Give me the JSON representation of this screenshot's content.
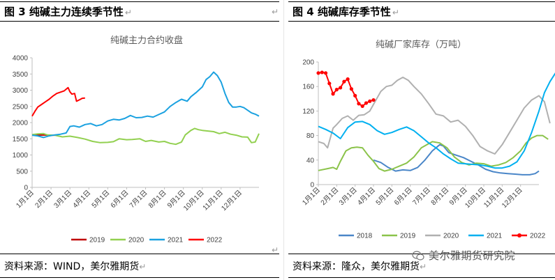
{
  "left": {
    "fig_label": "图 3  纯碱主力连续季节性",
    "return_mark": "↵",
    "source": "资料来源：WIND，美尔雅期货",
    "chart_data": {
      "type": "line",
      "title": "纯碱主力合约收盘",
      "xlabel": "",
      "ylabel": "",
      "ylim": [
        0,
        4000
      ],
      "y_ticks": [
        0,
        500,
        1000,
        1500,
        2000,
        2500,
        3000,
        3500,
        4000
      ],
      "x_ticks": [
        "1月1日",
        "2月1日",
        "3月1日",
        "4月1日",
        "5月1日",
        "6月1日",
        "7月1日",
        "8月1日",
        "9月1日",
        "10月1日",
        "11月1日",
        "12月1日"
      ],
      "xlim": [
        0,
        12
      ],
      "legend_position": "bottom",
      "grid": false,
      "series": [
        {
          "name": "2019",
          "color": "#c00000",
          "data": [
            [
              0.0,
              1620
            ],
            [
              0.2,
              1620
            ],
            [
              0.5,
              1615
            ],
            [
              0.8,
              1615
            ],
            [
              1.0,
              1610
            ],
            [
              1.2,
              1610
            ]
          ]
        },
        {
          "name": "2020",
          "color": "#92d050",
          "data": [
            [
              0.0,
              1630
            ],
            [
              0.3,
              1650
            ],
            [
              0.6,
              1660
            ],
            [
              0.8,
              1620
            ],
            [
              1.2,
              1610
            ],
            [
              1.6,
              1560
            ],
            [
              2.0,
              1580
            ],
            [
              2.4,
              1540
            ],
            [
              2.8,
              1490
            ],
            [
              3.2,
              1420
            ],
            [
              3.6,
              1380
            ],
            [
              4.0,
              1390
            ],
            [
              4.3,
              1410
            ],
            [
              4.6,
              1500
            ],
            [
              5.0,
              1470
            ],
            [
              5.3,
              1480
            ],
            [
              5.7,
              1500
            ],
            [
              6.0,
              1420
            ],
            [
              6.3,
              1450
            ],
            [
              6.7,
              1400
            ],
            [
              7.0,
              1420
            ],
            [
              7.3,
              1360
            ],
            [
              7.6,
              1330
            ],
            [
              7.9,
              1400
            ],
            [
              8.1,
              1620
            ],
            [
              8.4,
              1760
            ],
            [
              8.6,
              1820
            ],
            [
              8.8,
              1780
            ],
            [
              9.0,
              1760
            ],
            [
              9.3,
              1740
            ],
            [
              9.6,
              1720
            ],
            [
              9.9,
              1660
            ],
            [
              10.2,
              1700
            ],
            [
              10.5,
              1640
            ],
            [
              10.8,
              1610
            ],
            [
              11.1,
              1560
            ],
            [
              11.4,
              1550
            ],
            [
              11.6,
              1380
            ],
            [
              11.8,
              1400
            ],
            [
              12.0,
              1660
            ]
          ]
        },
        {
          "name": "2021",
          "color": "#1aa1e0",
          "data": [
            [
              0.0,
              1610
            ],
            [
              0.3,
              1590
            ],
            [
              0.6,
              1540
            ],
            [
              0.9,
              1590
            ],
            [
              1.2,
              1620
            ],
            [
              1.5,
              1640
            ],
            [
              1.8,
              1680
            ],
            [
              2.0,
              1880
            ],
            [
              2.2,
              1900
            ],
            [
              2.5,
              1860
            ],
            [
              2.8,
              1940
            ],
            [
              3.1,
              1970
            ],
            [
              3.4,
              1900
            ],
            [
              3.7,
              1940
            ],
            [
              4.0,
              2050
            ],
            [
              4.3,
              2100
            ],
            [
              4.6,
              2080
            ],
            [
              4.9,
              2130
            ],
            [
              5.2,
              2220
            ],
            [
              5.5,
              2150
            ],
            [
              5.8,
              2160
            ],
            [
              6.1,
              2200
            ],
            [
              6.4,
              2170
            ],
            [
              6.7,
              2250
            ],
            [
              7.0,
              2330
            ],
            [
              7.3,
              2500
            ],
            [
              7.6,
              2620
            ],
            [
              7.9,
              2720
            ],
            [
              8.2,
              2660
            ],
            [
              8.4,
              2800
            ],
            [
              8.7,
              2940
            ],
            [
              9.0,
              3100
            ],
            [
              9.2,
              3330
            ],
            [
              9.4,
              3420
            ],
            [
              9.6,
              3560
            ],
            [
              9.8,
              3450
            ],
            [
              10.0,
              3250
            ],
            [
              10.2,
              2900
            ],
            [
              10.4,
              2620
            ],
            [
              10.6,
              2480
            ],
            [
              10.8,
              2480
            ],
            [
              11.0,
              2500
            ],
            [
              11.2,
              2460
            ],
            [
              11.4,
              2380
            ],
            [
              11.6,
              2300
            ],
            [
              11.8,
              2260
            ],
            [
              12.0,
              2200
            ]
          ]
        },
        {
          "name": "2022",
          "color": "#ff0000",
          "data": [
            [
              0.0,
              2200
            ],
            [
              0.15,
              2350
            ],
            [
              0.3,
              2480
            ],
            [
              0.5,
              2560
            ],
            [
              0.7,
              2640
            ],
            [
              0.9,
              2720
            ],
            [
              1.1,
              2820
            ],
            [
              1.3,
              2900
            ],
            [
              1.5,
              2940
            ],
            [
              1.7,
              2980
            ],
            [
              1.9,
              3080
            ],
            [
              2.0,
              2950
            ],
            [
              2.1,
              2880
            ],
            [
              2.25,
              2900
            ],
            [
              2.35,
              2660
            ],
            [
              2.5,
              2700
            ],
            [
              2.65,
              2750
            ],
            [
              2.8,
              2760
            ]
          ]
        }
      ]
    }
  },
  "right": {
    "fig_label": "图 4    纯碱库存季节性",
    "return_mark": "↵",
    "source": "资料来源：隆众，美尔雅期货",
    "watermark": "美尔雅期货研究院",
    "chart_data": {
      "type": "line",
      "title": "纯碱厂家库存（万吨）",
      "xlabel": "",
      "ylabel": "",
      "ylim": [
        0,
        200
      ],
      "y_ticks": [
        0,
        40,
        80,
        120,
        160,
        200
      ],
      "x_ticks": [
        "1月1日",
        "2月1日",
        "3月1日",
        "4月1日",
        "5月1日",
        "6月1日",
        "7月1日",
        "8月1日",
        "9月1日",
        "10月1日",
        "11月1日",
        "12月1日"
      ],
      "xlim": [
        0,
        12
      ],
      "legend_position": "bottom",
      "grid": false,
      "series": [
        {
          "name": "2018",
          "color": "#4a86c8",
          "data": [
            [
              3.0,
              40
            ],
            [
              3.4,
              36
            ],
            [
              3.8,
              28
            ],
            [
              4.2,
              22
            ],
            [
              4.6,
              24
            ],
            [
              5.0,
              23
            ],
            [
              5.4,
              28
            ],
            [
              5.8,
              40
            ],
            [
              6.2,
              55
            ],
            [
              6.6,
              65
            ],
            [
              6.8,
              63
            ],
            [
              7.1,
              52
            ],
            [
              7.5,
              48
            ],
            [
              7.9,
              44
            ],
            [
              8.3,
              38
            ],
            [
              8.7,
              32
            ],
            [
              9.1,
              25
            ],
            [
              9.5,
              21
            ],
            [
              9.9,
              19
            ],
            [
              10.3,
              18
            ],
            [
              10.7,
              17
            ],
            [
              11.1,
              16
            ],
            [
              11.5,
              16
            ],
            [
              11.8,
              18
            ],
            [
              12.0,
              22
            ]
          ]
        },
        {
          "name": "2019",
          "color": "#8bc34a",
          "data": [
            [
              0.0,
              23
            ],
            [
              0.5,
              26
            ],
            [
              0.8,
              28
            ],
            [
              1.0,
              25
            ],
            [
              1.2,
              38
            ],
            [
              1.5,
              55
            ],
            [
              1.8,
              60
            ],
            [
              2.1,
              61
            ],
            [
              2.4,
              60
            ],
            [
              2.7,
              48
            ],
            [
              3.0,
              38
            ],
            [
              3.3,
              26
            ],
            [
              3.6,
              22
            ],
            [
              4.0,
              25
            ],
            [
              4.4,
              30
            ],
            [
              4.8,
              35
            ],
            [
              5.2,
              45
            ],
            [
              5.6,
              60
            ],
            [
              5.9,
              65
            ],
            [
              6.2,
              70
            ],
            [
              6.6,
              68
            ],
            [
              7.0,
              60
            ],
            [
              7.4,
              45
            ],
            [
              7.8,
              36
            ],
            [
              8.2,
              32
            ],
            [
              8.6,
              35
            ],
            [
              9.0,
              34
            ],
            [
              9.4,
              30
            ],
            [
              9.8,
              32
            ],
            [
              10.2,
              36
            ],
            [
              10.6,
              44
            ],
            [
              11.0,
              55
            ],
            [
              11.3,
              68
            ],
            [
              11.6,
              76
            ],
            [
              11.9,
              80
            ],
            [
              12.2,
              80
            ],
            [
              12.5,
              74
            ]
          ]
        },
        {
          "name": "2020",
          "color": "#b0b0b0",
          "data": [
            [
              0.0,
              70
            ],
            [
              0.3,
              67
            ],
            [
              0.5,
              60
            ],
            [
              0.8,
              92
            ],
            [
              1.0,
              98
            ],
            [
              1.3,
              108
            ],
            [
              1.6,
              112
            ],
            [
              1.9,
              105
            ],
            [
              2.2,
              113
            ],
            [
              2.5,
              114
            ],
            [
              2.8,
              120
            ],
            [
              3.1,
              136
            ],
            [
              3.4,
              152
            ],
            [
              3.7,
              160
            ],
            [
              4.0,
              162
            ],
            [
              4.3,
              170
            ],
            [
              4.6,
              175
            ],
            [
              4.9,
              170
            ],
            [
              5.2,
              160
            ],
            [
              5.6,
              148
            ],
            [
              6.0,
              132
            ],
            [
              6.4,
              115
            ],
            [
              6.8,
              112
            ],
            [
              7.2,
              102
            ],
            [
              7.6,
              105
            ],
            [
              8.0,
              95
            ],
            [
              8.4,
              80
            ],
            [
              8.8,
              62
            ],
            [
              9.2,
              55
            ],
            [
              9.6,
              50
            ],
            [
              10.0,
              65
            ],
            [
              10.4,
              85
            ],
            [
              10.8,
              105
            ],
            [
              11.2,
              125
            ],
            [
              11.6,
              138
            ],
            [
              12.0,
              145
            ],
            [
              12.3,
              135
            ],
            [
              12.6,
              100
            ]
          ]
        },
        {
          "name": "2021",
          "color": "#00b0f0",
          "data": [
            [
              0.0,
              95
            ],
            [
              0.4,
              90
            ],
            [
              0.8,
              84
            ],
            [
              1.2,
              75
            ],
            [
              1.6,
              93
            ],
            [
              2.0,
              102
            ],
            [
              2.4,
              103
            ],
            [
              2.8,
              98
            ],
            [
              3.2,
              88
            ],
            [
              3.6,
              82
            ],
            [
              4.0,
              85
            ],
            [
              4.4,
              90
            ],
            [
              4.8,
              94
            ],
            [
              5.2,
              88
            ],
            [
              5.6,
              78
            ],
            [
              6.0,
              68
            ],
            [
              6.4,
              60
            ],
            [
              6.8,
              50
            ],
            [
              7.2,
              42
            ],
            [
              7.6,
              35
            ],
            [
              8.0,
              34
            ],
            [
              8.4,
              33
            ],
            [
              8.8,
              32
            ],
            [
              9.2,
              30
            ],
            [
              9.6,
              27
            ],
            [
              10.0,
              27
            ],
            [
              10.4,
              30
            ],
            [
              10.8,
              37
            ],
            [
              11.2,
              55
            ],
            [
              11.6,
              85
            ],
            [
              12.0,
              120
            ],
            [
              12.3,
              150
            ],
            [
              12.6,
              168
            ],
            [
              12.9,
              182
            ]
          ]
        },
        {
          "name": "2022",
          "color": "#ff0000",
          "data": [
            [
              0.0,
              182
            ],
            [
              0.2,
              183
            ],
            [
              0.4,
              182
            ],
            [
              0.6,
              165
            ],
            [
              0.8,
              148
            ],
            [
              1.0,
              155
            ],
            [
              1.2,
              158
            ],
            [
              1.4,
              168
            ],
            [
              1.6,
              172
            ],
            [
              1.8,
              156
            ],
            [
              2.0,
              145
            ],
            [
              2.2,
              132
            ],
            [
              2.4,
              128
            ],
            [
              2.6,
              133
            ],
            [
              2.8,
              136
            ],
            [
              3.0,
              138
            ]
          ]
        }
      ]
    }
  }
}
